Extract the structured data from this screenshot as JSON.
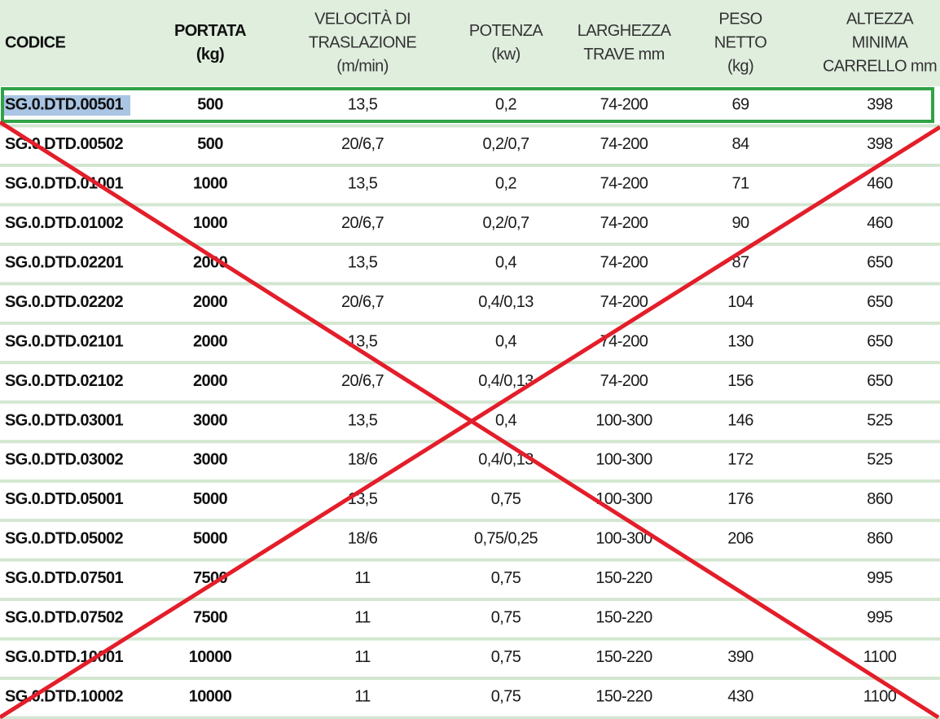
{
  "table": {
    "header": [
      [
        "CODICE"
      ],
      [
        "PORTATA",
        "(kg)"
      ],
      [
        "VELOCITÀ DI",
        "TRASLAZIONE",
        "(m/min)"
      ],
      [
        "POTENZA",
        "(kw)"
      ],
      [
        "LARGHEZZA",
        "TRAVE mm"
      ],
      [
        "PESO",
        "NETTO",
        "(kg)"
      ],
      [
        "ALTEZZA",
        "MINIMA",
        "CARRELLO mm"
      ]
    ],
    "rows": [
      [
        "SG.0.DTD.00501",
        "500",
        "13,5",
        "0,2",
        "74-200",
        "69",
        "398"
      ],
      [
        "SG.0.DTD.00502",
        "500",
        "20/6,7",
        "0,2/0,7",
        "74-200",
        "84",
        "398"
      ],
      [
        "SG.0.DTD.01001",
        "1000",
        "13,5",
        "0,2",
        "74-200",
        "71",
        "460"
      ],
      [
        "SG.0.DTD.01002",
        "1000",
        "20/6,7",
        "0,2/0,7",
        "74-200",
        "90",
        "460"
      ],
      [
        "SG.0.DTD.02201",
        "2000",
        "13,5",
        "0,4",
        "74-200",
        "87",
        "650"
      ],
      [
        "SG.0.DTD.02202",
        "2000",
        "20/6,7",
        "0,4/0,13",
        "74-200",
        "104",
        "650"
      ],
      [
        "SG.0.DTD.02101",
        "2000",
        "13,5",
        "0,4",
        "74-200",
        "130",
        "650"
      ],
      [
        "SG.0.DTD.02102",
        "2000",
        "20/6,7",
        "0,4/0,13",
        "74-200",
        "156",
        "650"
      ],
      [
        "SG.0.DTD.03001",
        "3000",
        "13,5",
        "0,4",
        "100-300",
        "146",
        "525"
      ],
      [
        "SG.0.DTD.03002",
        "3000",
        "18/6",
        "0,4/0,13",
        "100-300",
        "172",
        "525"
      ],
      [
        "SG.0.DTD.05001",
        "5000",
        "13,5",
        "0,75",
        "100-300",
        "176",
        "860"
      ],
      [
        "SG.0.DTD.05002",
        "5000",
        "18/6",
        "0,75/0,25",
        "100-300",
        "206",
        "860"
      ],
      [
        "SG.0.DTD.07501",
        "7500",
        "11",
        "0,75",
        "150-220",
        null,
        "995"
      ],
      [
        "SG.0.DTD.07502",
        "7500",
        "11",
        "0,75",
        "150-220",
        null,
        "995"
      ],
      [
        "SG.0.DTD.10001",
        "10000",
        "11",
        "0,75",
        "150-220",
        "390",
        "1100"
      ],
      [
        "SG.0.DTD.10002",
        "10000",
        "11",
        "0,75",
        "150-220",
        "430",
        "1100"
      ]
    ]
  }
}
